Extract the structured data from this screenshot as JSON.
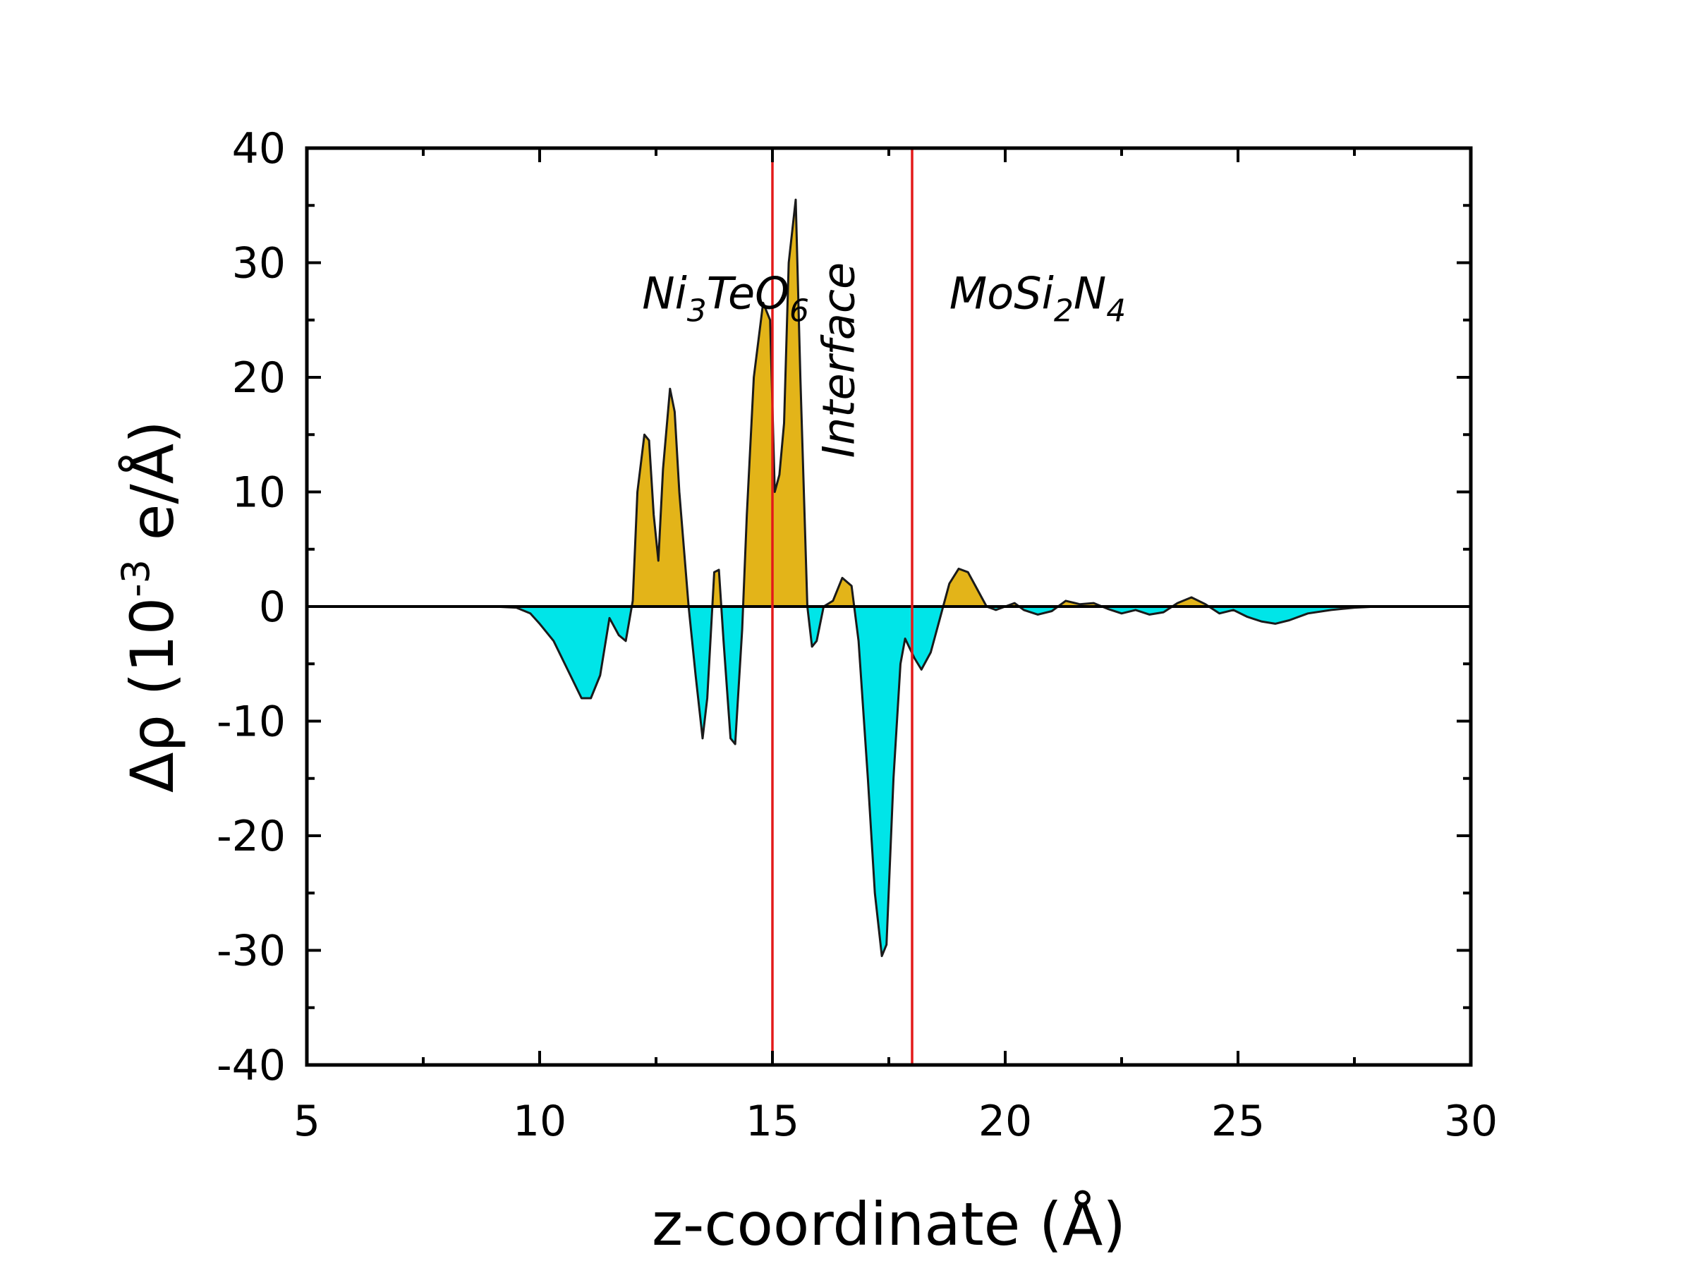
{
  "chart_data": {
    "type": "area",
    "xlabel": "z-coordinate (Å)",
    "ylabel_parts": [
      "Δρ (10",
      "-3",
      " e/Å)"
    ],
    "xlim": [
      5,
      30
    ],
    "ylim": [
      -40,
      40
    ],
    "xticks": [
      5,
      10,
      15,
      20,
      25,
      30
    ],
    "yticks": [
      -40,
      -30,
      -20,
      -10,
      0,
      10,
      20,
      30,
      40
    ],
    "x_minor_step": 2.5,
    "y_minor_step": 5,
    "grid": false,
    "colors": {
      "positive": "#E3B419",
      "negative": "#00E5E8",
      "outline": "#1a1a1a",
      "boundary": "#E31A1A",
      "zero_line": "#000000"
    },
    "boundaries": [
      15,
      18
    ],
    "regions": [
      {
        "label_parts": [
          "Ni",
          "3",
          "TeO",
          "6"
        ],
        "x": 12.2,
        "y": 26,
        "orientation": "horizontal"
      },
      {
        "label_parts": [
          "Interface"
        ],
        "x": 16.75,
        "y": 21.5,
        "orientation": "vertical"
      },
      {
        "label_parts": [
          "MoSi",
          "2",
          "N",
          "4"
        ],
        "x": 18.8,
        "y": 26,
        "orientation": "horizontal"
      }
    ],
    "series": [
      {
        "x": [
          9.0,
          9.5,
          9.8,
          10.0,
          10.3,
          10.6,
          10.9,
          11.1,
          11.3,
          11.5,
          11.7,
          11.85,
          12.0,
          12.1,
          12.25,
          12.35,
          12.45,
          12.55,
          12.65,
          12.8,
          12.9,
          13.0,
          13.2,
          13.35,
          13.5,
          13.6,
          13.75,
          13.85,
          13.95,
          14.1,
          14.2,
          14.35,
          14.45,
          14.6,
          14.8,
          14.95,
          15.05,
          15.15,
          15.25,
          15.35,
          15.5,
          15.6,
          15.75,
          15.85,
          15.95,
          16.1,
          16.3,
          16.5,
          16.7,
          16.85,
          17.05,
          17.2,
          17.35,
          17.45,
          17.6,
          17.75,
          17.85,
          18.05,
          18.2,
          18.4,
          18.6,
          18.8,
          19.0,
          19.2,
          19.4,
          19.6,
          19.8,
          20.0,
          20.2,
          20.4,
          20.7,
          21.0,
          21.3,
          21.6,
          21.9,
          22.2,
          22.5,
          22.8,
          23.1,
          23.4,
          23.7,
          24.0,
          24.3,
          24.6,
          24.9,
          25.2,
          25.5,
          25.8,
          26.1,
          26.5,
          27.0,
          27.5,
          28.0,
          29.0,
          30.0
        ],
        "y": [
          0,
          -0.1,
          -0.6,
          -1.5,
          -3.0,
          -5.5,
          -8.0,
          -8.0,
          -6.0,
          -1.0,
          -2.5,
          -3.0,
          0.5,
          10.0,
          15.0,
          14.5,
          8.0,
          4.0,
          12.0,
          19.0,
          17.0,
          10.0,
          0.0,
          -6.0,
          -11.5,
          -8.0,
          3.0,
          3.2,
          -3.0,
          -11.5,
          -12.0,
          -2.0,
          8.0,
          20.0,
          26.5,
          25.0,
          10.0,
          11.5,
          16.0,
          30.0,
          35.5,
          20.0,
          0.0,
          -3.5,
          -3.0,
          0.0,
          0.5,
          2.5,
          1.8,
          -3.0,
          -15.0,
          -25.0,
          -30.5,
          -29.5,
          -15.0,
          -5.0,
          -2.8,
          -4.5,
          -5.5,
          -4.0,
          -1.0,
          2.0,
          3.3,
          3.0,
          1.5,
          0.0,
          -0.3,
          0.0,
          0.3,
          -0.3,
          -0.7,
          -0.4,
          0.5,
          0.2,
          0.3,
          -0.2,
          -0.6,
          -0.3,
          -0.7,
          -0.5,
          0.3,
          0.8,
          0.2,
          -0.6,
          -0.3,
          -0.9,
          -1.3,
          -1.5,
          -1.2,
          -0.6,
          -0.3,
          -0.1,
          0,
          0,
          0
        ]
      }
    ]
  }
}
